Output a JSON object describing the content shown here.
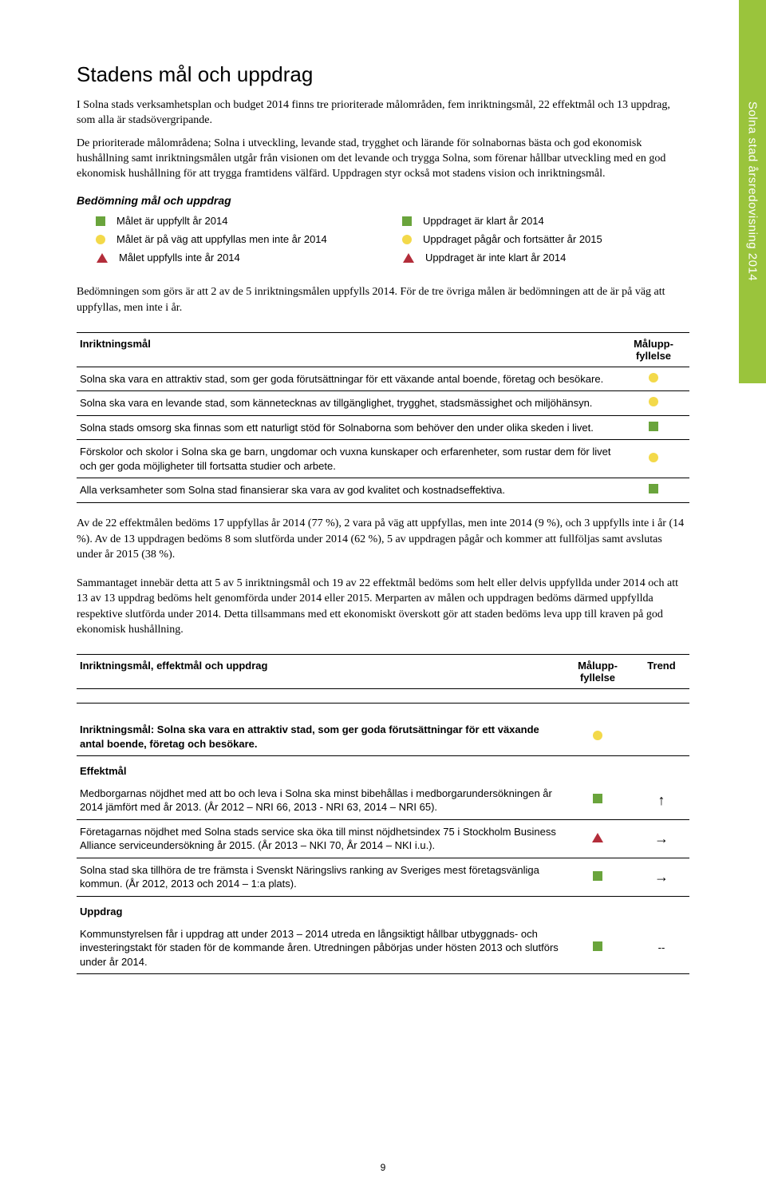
{
  "sideTab": "Solna stad årsredovisning 2014",
  "title": "Stadens mål och uppdrag",
  "intro1": "I Solna stads verksamhetsplan och budget 2014 finns tre prioriterade målområden, fem inriktningsmål, 22 effektmål och 13 uppdrag, som alla är stadsövergripande.",
  "intro2": "De prioriterade målområdena; Solna i utveckling, levande stad, trygghet och lärande för solnabornas bästa och god ekonomisk hushållning samt inriktningsmålen utgår från visionen om det levande och trygga Solna, som förenar hållbar utveckling med en god ekonomisk hushållning för att trygga framtidens välfärd. Uppdragen styr också mot stadens vision och inriktningsmål.",
  "legendTitle": "Bedömning mål och uppdrag",
  "legendLeft": [
    {
      "icon": "sq-green",
      "text": "Målet är uppfyllt år 2014"
    },
    {
      "icon": "circ-yellow",
      "text": "Målet är på väg att uppfyllas men inte år 2014"
    },
    {
      "icon": "tri-red",
      "text": "Målet uppfylls inte år 2014"
    }
  ],
  "legendRight": [
    {
      "icon": "sq-green",
      "text": "Uppdraget är klart år 2014"
    },
    {
      "icon": "circ-yellow",
      "text": "Uppdraget pågår och fortsätter år 2015"
    },
    {
      "icon": "tri-red",
      "text": "Uppdraget är inte klart år 2014"
    }
  ],
  "para1": "Bedömningen som görs är att 2 av de 5 inriktningsmålen uppfylls 2014. För de tre övriga målen är bedömningen att de är på väg att uppfyllas, men inte i år.",
  "table1": {
    "headers": [
      "Inriktningsmål",
      "Målupp-\nfyllelse"
    ],
    "rows": [
      {
        "text": "Solna ska vara en attraktiv stad, som ger goda förutsättningar för ett växande antal boende, företag och besökare.",
        "status": "circ-yellow"
      },
      {
        "text": "Solna ska vara en levande stad, som kännetecknas av tillgänglighet, trygghet, stadsmässighet och miljöhänsyn.",
        "status": "circ-yellow"
      },
      {
        "text": "Solna stads omsorg ska finnas som ett naturligt stöd för Solnaborna som behöver den under olika skeden i livet.",
        "status": "sq-green"
      },
      {
        "text": "Förskolor och skolor i Solna ska ge barn, ungdomar och vuxna kunskaper och erfarenheter, som rustar dem för livet och ger goda möjligheter till fortsatta studier och arbete.",
        "status": "circ-yellow"
      },
      {
        "text": "Alla verksamheter som Solna stad finansierar ska vara av god kvalitet och kostnadseffektiva.",
        "status": "sq-green"
      }
    ]
  },
  "para2": "Av de 22 effektmålen bedöms 17 uppfyllas år 2014 (77 %), 2 vara på väg att uppfyllas, men inte 2014 (9 %), och 3 uppfylls inte i år (14 %). Av de 13 uppdragen bedöms 8 som slutförda under 2014 (62 %), 5 av uppdragen pågår och kommer att fullföljas samt avslutas under år 2015 (38 %).",
  "para3": "Sammantaget innebär detta att 5 av 5 inriktningsmål och 19 av 22 effektmål bedöms som helt eller delvis uppfyllda under 2014 och att 13 av 13 uppdrag bedöms helt genomförda under 2014 eller 2015. Merparten av målen och uppdragen bedöms därmed uppfyllda respektive slutförda under 2014. Detta tillsammans med ett ekonomiskt överskott gör att staden bedöms leva upp till kraven på god ekonomisk hushållning.",
  "table2": {
    "headers": [
      "Inriktningsmål, effektmål och uppdrag",
      "Målupp-\nfyllelse",
      "Trend"
    ],
    "sectionLabel": "Inriktningsmål: Solna ska vara en attraktiv stad, som ger goda förutsättningar för ett växande antal boende, företag och besökare.",
    "sectionStatus": "circ-yellow",
    "effektLabel": "Effektmål",
    "effektRows": [
      {
        "text": "Medborgarnas nöjdhet med att bo och leva i Solna ska minst bibehållas i medborgarundersökningen år 2014 jämfört med år 2013. (År 2012 – NRI 66, 2013 - NRI 63, 2014 – NRI 65).",
        "status": "sq-green",
        "trend": "↑"
      },
      {
        "text": "Företagarnas nöjdhet med Solna stads service ska öka till minst nöjdhetsindex 75 i Stockholm Business Alliance serviceundersökning år 2015. (År 2013 – NKI 70, År 2014 – NKI i.u.).",
        "status": "tri-red",
        "trend": "→"
      },
      {
        "text": "Solna stad ska tillhöra de tre främsta i Svenskt Näringslivs ranking av Sveriges mest företagsvänliga kommun. (År 2012, 2013 och 2014 – 1:a plats).",
        "status": "sq-green",
        "trend": "→"
      }
    ],
    "uppdragLabel": "Uppdrag",
    "uppdragRows": [
      {
        "text": "Kommunstyrelsen får i uppdrag att under 2013 – 2014 utreda en långsiktigt hållbar utbyggnads- och investeringstakt för staden för de kommande åren. Utredningen påbörjas under hösten 2013 och slutförs under år 2014.",
        "status": "sq-green",
        "trend": "--"
      }
    ]
  },
  "pageNumber": "9"
}
